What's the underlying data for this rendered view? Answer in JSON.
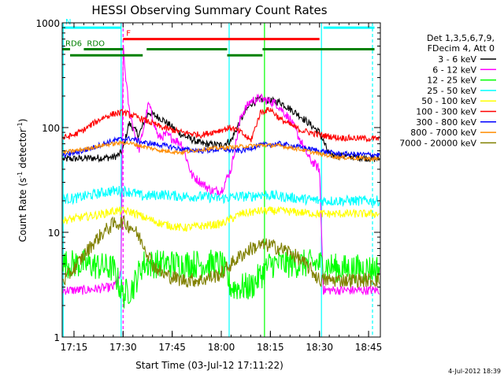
{
  "chart_data": {
    "type": "line",
    "title": "HESSI Observing Summary Count Rates",
    "xlabel": "Start Time (03-Jul-12 17:11:22)",
    "ylabel_main": "Count Rate (s",
    "ylabel_sup1": "-1",
    "ylabel_mid": " detector",
    "ylabel_sup2": "-1",
    "ylabel_end": ")",
    "yscale": "log",
    "ylim": [
      1,
      1000
    ],
    "xlim": [
      17.19,
      18.81
    ],
    "x_ticks": [
      {
        "v": 17.25,
        "label": "17:15"
      },
      {
        "v": 17.5,
        "label": "17:30"
      },
      {
        "v": 17.75,
        "label": "17:45"
      },
      {
        "v": 18.0,
        "label": "18:00"
      },
      {
        "v": 18.25,
        "label": "18:15"
      },
      {
        "v": 18.5,
        "label": "18:30"
      },
      {
        "v": 18.75,
        "label": "18:45"
      }
    ],
    "y_ticks": [
      {
        "v": 1,
        "label": "1"
      },
      {
        "v": 10,
        "label": "10"
      },
      {
        "v": 100,
        "label": "100"
      },
      {
        "v": 1000,
        "label": "1000"
      }
    ],
    "legend_header": [
      "Det 1,3,5,6,7,9,",
      "FDecim 4, Att 0"
    ],
    "series": [
      {
        "name": "3 - 6 keV",
        "color": "#000000",
        "x": [
          17.2,
          17.45,
          17.48,
          17.5,
          17.53,
          17.58,
          17.63,
          17.7,
          17.8,
          17.9,
          18.0,
          18.05,
          18.1,
          18.15,
          18.2,
          18.3,
          18.4,
          18.5,
          18.55,
          18.7,
          18.8
        ],
        "y": [
          50,
          52,
          55,
          62,
          110,
          85,
          140,
          120,
          85,
          70,
          68,
          75,
          120,
          170,
          185,
          175,
          130,
          90,
          55,
          52,
          50
        ]
      },
      {
        "name": "6 - 12 keV",
        "color": "#ff00ff",
        "x": [
          17.2,
          17.3,
          17.45,
          17.49,
          17.5,
          17.51,
          17.53,
          17.58,
          17.63,
          17.68,
          17.72,
          17.8,
          17.85,
          17.95,
          18.0,
          18.05,
          18.1,
          18.15,
          18.2,
          18.28,
          18.35,
          18.45,
          18.5,
          18.52,
          18.8
        ],
        "y": [
          2.8,
          2.8,
          3.0,
          4.0,
          600,
          350,
          150,
          60,
          170,
          80,
          85,
          70,
          35,
          25,
          25,
          40,
          130,
          180,
          190,
          170,
          120,
          50,
          40,
          2.8,
          2.8
        ]
      },
      {
        "name": "12 - 25 keV",
        "color": "#00ff00",
        "x": [
          17.2,
          17.3,
          17.45,
          17.5,
          17.55,
          17.6,
          17.75,
          17.9,
          18.0,
          18.05,
          18.15,
          18.25,
          18.4,
          18.5,
          18.6,
          18.8
        ],
        "y": [
          5,
          5,
          4.5,
          2.5,
          3,
          5,
          5,
          5,
          5,
          3,
          3,
          5,
          5,
          5,
          4.5,
          4.5
        ]
      },
      {
        "name": "25 - 50 keV",
        "color": "#00ffff",
        "x": [
          17.2,
          17.25,
          17.3,
          17.35,
          17.4,
          17.45,
          17.5,
          17.55,
          17.6,
          17.7,
          17.8,
          17.9,
          18.0,
          18.1,
          18.15,
          18.2,
          18.3,
          18.4,
          18.5,
          18.6,
          18.8
        ],
        "y": [
          21,
          21,
          22,
          23,
          24,
          25,
          25,
          24,
          22,
          23,
          22,
          22,
          21,
          22,
          22,
          23,
          22,
          21,
          20,
          20,
          20
        ]
      },
      {
        "name": "50 - 100 keV",
        "color": "#ffff00",
        "x": [
          17.2,
          17.3,
          17.4,
          17.45,
          17.5,
          17.55,
          17.6,
          17.7,
          17.8,
          18.0,
          18.1,
          18.2,
          18.3,
          18.5
        ],
        "y": [
          13,
          14,
          15,
          16,
          16,
          15.5,
          14,
          12,
          11,
          12,
          15,
          16,
          16,
          15
        ]
      },
      {
        "name": "100 - 300 keV",
        "color": "#ff0000",
        "x": [
          17.2,
          17.25,
          17.3,
          17.35,
          17.4,
          17.45,
          17.5,
          17.55,
          17.6,
          17.7,
          17.8,
          17.9,
          18.0,
          18.05,
          18.1,
          18.15,
          18.2,
          18.25,
          18.3,
          18.4,
          18.5,
          18.6,
          18.8
        ],
        "y": [
          80,
          85,
          95,
          110,
          125,
          135,
          140,
          130,
          120,
          100,
          90,
          85,
          95,
          100,
          90,
          75,
          140,
          150,
          120,
          95,
          85,
          80,
          78
        ]
      },
      {
        "name": "300 - 800 keV",
        "color": "#0000ff",
        "x": [
          17.2,
          17.3,
          17.4,
          17.45,
          17.5,
          17.55,
          17.6,
          17.7,
          17.8,
          17.9,
          18.0,
          18.1,
          18.2,
          18.3,
          18.4,
          18.5,
          18.6,
          18.8
        ],
        "y": [
          55,
          60,
          70,
          75,
          78,
          78,
          72,
          68,
          62,
          60,
          62,
          60,
          68,
          70,
          65,
          60,
          56,
          55
        ]
      },
      {
        "name": "800 - 7000 keV",
        "color": "#ff8c00",
        "x": [
          17.2,
          17.3,
          17.4,
          17.5,
          17.55,
          17.6,
          17.7,
          17.8,
          17.9,
          18.0,
          18.1,
          18.2,
          18.3,
          18.4,
          18.5,
          18.6,
          18.8
        ],
        "y": [
          58,
          62,
          68,
          72,
          70,
          66,
          60,
          58,
          62,
          64,
          66,
          68,
          67,
          62,
          56,
          52,
          50
        ]
      },
      {
        "name": "7000 - 20000 keV",
        "color": "#808000",
        "x": [
          17.2,
          17.25,
          17.3,
          17.35,
          17.4,
          17.45,
          17.5,
          17.55,
          17.6,
          17.65,
          17.7,
          17.8,
          17.9,
          18.0,
          18.05,
          18.1,
          18.15,
          18.2,
          18.25,
          18.3,
          18.35,
          18.4,
          18.45,
          18.5,
          18.55,
          18.6,
          18.7,
          18.8
        ],
        "y": [
          3.5,
          4.5,
          6,
          8,
          10,
          12,
          12.5,
          11,
          8,
          5,
          4,
          3.5,
          3.5,
          4,
          5,
          6,
          7,
          7.5,
          7.5,
          7,
          6.5,
          5.5,
          4.5,
          3.5,
          3.5,
          3.5,
          3.5,
          3.5
        ]
      }
    ],
    "state_bars": [
      {
        "label": "N",
        "color": "#00ffff",
        "x_start": 17.19,
        "x_end": 17.49,
        "level": 900
      },
      {
        "label": "",
        "color": "#00ffff",
        "x_start": 18.52,
        "x_end": 18.78,
        "level": 900
      },
      {
        "label": "F",
        "color": "#ff0000",
        "x_start": 17.5,
        "x_end": 18.5,
        "level": 700
      },
      {
        "label": "RDO",
        "color": "#008000",
        "x_start": 17.3,
        "x_end": 17.5,
        "level": 560
      },
      {
        "label": "",
        "color": "#008000",
        "x_start": 17.62,
        "x_end": 18.03,
        "level": 560
      },
      {
        "label": "",
        "color": "#008000",
        "x_start": 18.21,
        "x_end": 18.78,
        "level": 560
      },
      {
        "label": "RD6",
        "color": "#008000",
        "x_start": 17.19,
        "x_end": 17.23,
        "level": 560
      },
      {
        "label": "",
        "color": "#008000",
        "x_start": 17.23,
        "x_end": 17.6,
        "level": 490
      },
      {
        "label": "",
        "color": "#008000",
        "x_start": 18.03,
        "x_end": 18.21,
        "level": 490
      }
    ],
    "vertical_markers": [
      {
        "x": 17.195,
        "color": "#00ffff",
        "style": "solid"
      },
      {
        "x": 17.49,
        "color": "#00ffff",
        "style": "solid"
      },
      {
        "x": 17.5,
        "color": "#ff00ff",
        "style": "dashed"
      },
      {
        "x": 18.04,
        "color": "#00ffff",
        "style": "solid"
      },
      {
        "x": 18.22,
        "color": "#00ff00",
        "style": "solid"
      },
      {
        "x": 18.51,
        "color": "#00ffff",
        "style": "solid"
      },
      {
        "x": 18.77,
        "color": "#00ffff",
        "style": "dashed"
      }
    ],
    "footer_date": "4-Jul-2012 18:39"
  }
}
